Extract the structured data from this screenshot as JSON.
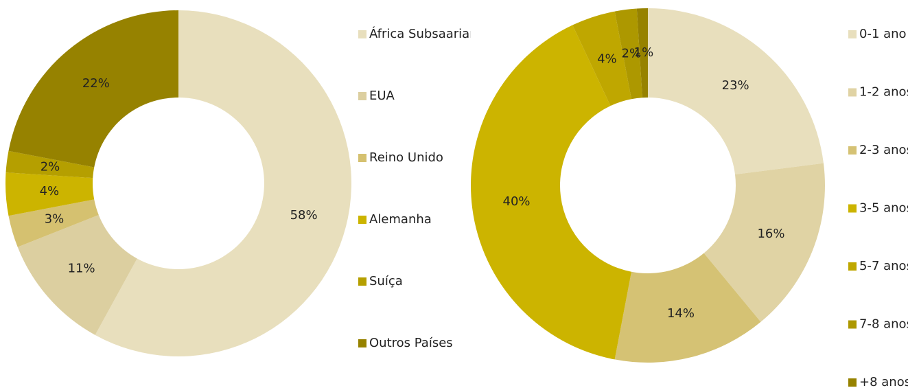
{
  "chart_data": [
    {
      "type": "donut",
      "categories": [
        "África Subsaariana",
        "EUA",
        "Reino Unido",
        "Alemanha",
        "Suíça",
        "Outros Países"
      ],
      "values": [
        58,
        11,
        3,
        4,
        2,
        22
      ],
      "value_labels": [
        "58%",
        "11%",
        "3%",
        "4%",
        "2%",
        "22%"
      ],
      "colors": [
        "#e8dfbd",
        "#dccfa0",
        "#d5c170",
        "#ccb400",
        "#b59f00",
        "#968200"
      ],
      "legend": "right"
    },
    {
      "type": "donut",
      "categories": [
        "0-1 ano",
        "1-2 anos",
        "2-3 anos",
        "3-5 anos",
        "5-7 anos",
        "7-8 anos",
        "+8 anos"
      ],
      "values": [
        23,
        16,
        14,
        40,
        4,
        2,
        1
      ],
      "value_labels": [
        "23%",
        "16%",
        "14%",
        "40%",
        "4%",
        "2%",
        "1%"
      ],
      "colors": [
        "#e8dfbd",
        "#e0d3a4",
        "#d5c274",
        "#ccb400",
        "#bfa700",
        "#ad9800",
        "#968200"
      ],
      "legend": "right"
    }
  ]
}
